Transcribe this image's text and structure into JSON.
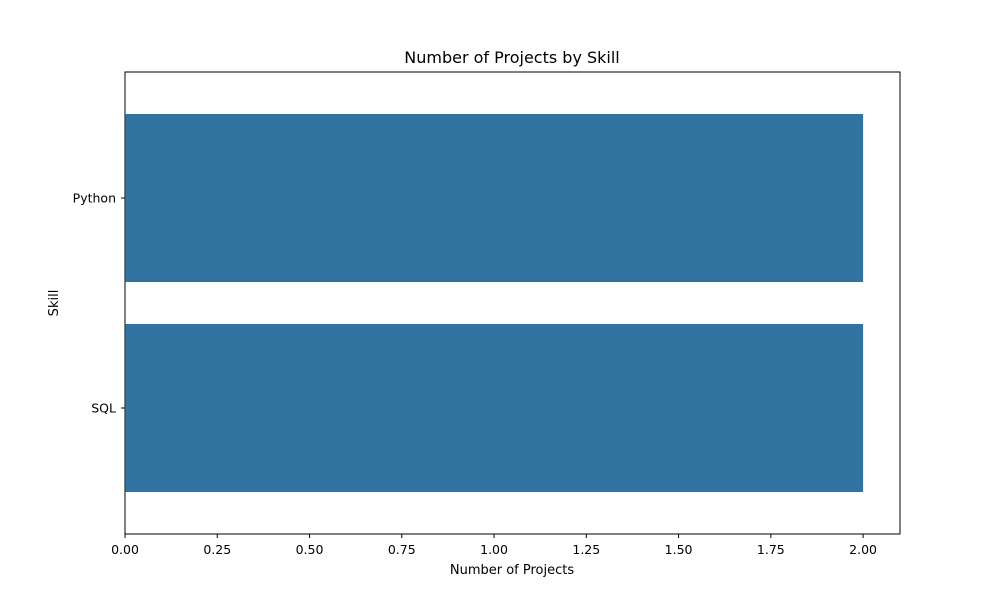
{
  "chart_data": {
    "type": "bar",
    "orientation": "horizontal",
    "title": "Number of Projects by Skill",
    "xlabel": "Number of Projects",
    "ylabel": "Skill",
    "categories": [
      "Python",
      "SQL"
    ],
    "values": [
      2,
      2
    ],
    "xlim": [
      0,
      2.1
    ],
    "xticks": [
      0,
      0.25,
      0.5,
      0.75,
      1.0,
      1.25,
      1.5,
      1.75,
      2.0
    ],
    "xtick_labels": [
      "0.00",
      "0.25",
      "0.50",
      "0.75",
      "1.00",
      "1.25",
      "1.50",
      "1.75",
      "2.00"
    ],
    "grid": false,
    "legend": "none",
    "bar_color": "#3274a1",
    "bar_edge_color": "#e88a3c"
  }
}
